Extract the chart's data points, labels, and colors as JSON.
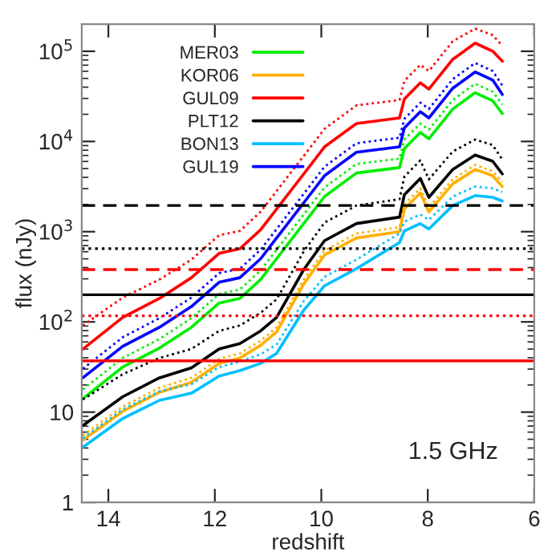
{
  "chart_data": {
    "type": "line",
    "xlabel": "redshift",
    "ylabel": "flux (nJy)",
    "annotations": [
      "1.5 GHz"
    ],
    "x": [
      14.48,
      13.73,
      13.04,
      12.44,
      11.92,
      11.53,
      11.14,
      10.84,
      10.33,
      9.94,
      9.34,
      8.53,
      8.44,
      8.14,
      7.98,
      7.53,
      7.11,
      6.78,
      6.6
    ],
    "series": [
      {
        "name": "MER03",
        "color": "#00ee00",
        "line_style": "solid",
        "values": [
          14.1,
          31.6,
          51.3,
          87.1,
          162,
          182,
          295,
          501,
          1230,
          2450,
          4470,
          5130,
          8320,
          12600,
          10700,
          22900,
          34700,
          28200,
          20400
        ]
      },
      {
        "name": "KOR06",
        "color": "#ffb000",
        "line_style": "solid",
        "values": [
          4.9,
          10.2,
          16.6,
          21.4,
          34.7,
          39.8,
          55.0,
          77.6,
          263,
          550,
          851,
          1000,
          1780,
          2690,
          1660,
          3390,
          4900,
          4170,
          3160
        ]
      },
      {
        "name": "GUL09",
        "color": "#ff0000",
        "line_style": "solid",
        "values": [
          50,
          112,
          182,
          309,
          575,
          646,
          1050,
          1780,
          4370,
          8710,
          15800,
          18200,
          29500,
          44700,
          38000,
          81300,
          123000,
          100000,
          77600
        ]
      },
      {
        "name": "PLT12",
        "color": "#000000",
        "line_style": "solid",
        "values": [
          7.08,
          14.8,
          24.0,
          30.9,
          50.1,
          57.5,
          79.4,
          112,
          380,
          794,
          1230,
          1450,
          2570,
          3890,
          2400,
          4900,
          7080,
          6030,
          4370
        ]
      },
      {
        "name": "BON13",
        "color": "#00bfff",
        "line_style": "solid",
        "values": [
          4.07,
          8.51,
          13.5,
          16.2,
          25.1,
          28.8,
          34.7,
          44.7,
          135,
          251,
          389,
          759,
          1020,
          1230,
          1070,
          1950,
          2510,
          2400,
          2190
        ]
      },
      {
        "name": "GUL19",
        "color": "#0000ff",
        "line_style": "solid",
        "values": [
          24.0,
          53.7,
          87.1,
          148,
          275,
          309,
          501,
          851,
          2090,
          4170,
          7590,
          8710,
          14100,
          21400,
          18200,
          38900,
          58900,
          47900,
          33100
        ]
      },
      {
        "color": "#00ee00",
        "line_style": "dotted",
        "values": [
          17.8,
          39.8,
          64.6,
          110,
          204,
          229,
          372,
          631,
          1550,
          3090,
          5620,
          6460,
          10500,
          15800,
          13500,
          28800,
          43700,
          35500,
          25700
        ]
      },
      {
        "color": "#ffb000",
        "line_style": "dotted",
        "values": [
          5.5,
          11.5,
          18.6,
          24.0,
          38.9,
          44.7,
          61.7,
          87.1,
          295,
          617,
          955,
          1120,
          2000,
          3020,
          1860,
          3800,
          5500,
          4680,
          3550
        ]
      },
      {
        "color": "#ff0000",
        "line_style": "dotted",
        "values": [
          91.2,
          186,
          295,
          490,
          912,
          1020,
          1660,
          2820,
          6920,
          13800,
          25100,
          28800,
          46800,
          70800,
          60300,
          129000,
          178000,
          151000,
          115000
        ]
      },
      {
        "color": "#000000",
        "line_style": "dotted",
        "values": [
          13.8,
          26.3,
          39.8,
          50.1,
          79.4,
          91.2,
          126,
          178,
          603,
          1260,
          1950,
          2290,
          4070,
          6170,
          3800,
          7760,
          10500,
          9120,
          6310
        ]
      },
      {
        "color": "#00bfff",
        "line_style": "dotted",
        "values": [
          5.13,
          10.7,
          17.0,
          20.4,
          31.6,
          36.3,
          43.7,
          56.2,
          170,
          316,
          490,
          955,
          1290,
          1550,
          1350,
          2450,
          3160,
          3020,
          2750
        ]
      },
      {
        "color": "#0000ff",
        "line_style": "dotted",
        "values": [
          30.2,
          67.6,
          110,
          186,
          347,
          389,
          631,
          1070,
          2630,
          5250,
          9550,
          11000,
          17800,
          26900,
          22900,
          49000,
          74100,
          60300,
          41700
        ]
      }
    ],
    "ref_lines": [
      {
        "axis": "y",
        "value": 1950,
        "color": "#000000",
        "line_style": "dashed"
      },
      {
        "axis": "y",
        "value": 650,
        "color": "#000000",
        "line_style": "dotted"
      },
      {
        "axis": "y",
        "value": 380,
        "color": "#ff0000",
        "line_style": "dashed"
      },
      {
        "axis": "y",
        "value": 200,
        "color": "#000000",
        "line_style": "solid"
      },
      {
        "axis": "y",
        "value": 117,
        "color": "#ff0000",
        "line_style": "dotted"
      },
      {
        "axis": "y",
        "value": 37,
        "color": "#ff0000",
        "line_style": "solid"
      }
    ],
    "log": "y",
    "xlim": [
      14.5,
      6
    ],
    "xticks": [
      14,
      12,
      10,
      8,
      6
    ],
    "ylim": [
      1,
      200000
    ],
    "yticks": [
      1,
      10,
      {
        "value": 100,
        "label": "10$^{2}$"
      },
      {
        "value": 1000,
        "label": "10$^{3}$"
      },
      {
        "value": 10000,
        "label": "10$^{4}$"
      },
      {
        "value": 100000,
        "label": "10$^{5}$"
      }
    ],
    "legend": "top left",
    "grid": false
  }
}
